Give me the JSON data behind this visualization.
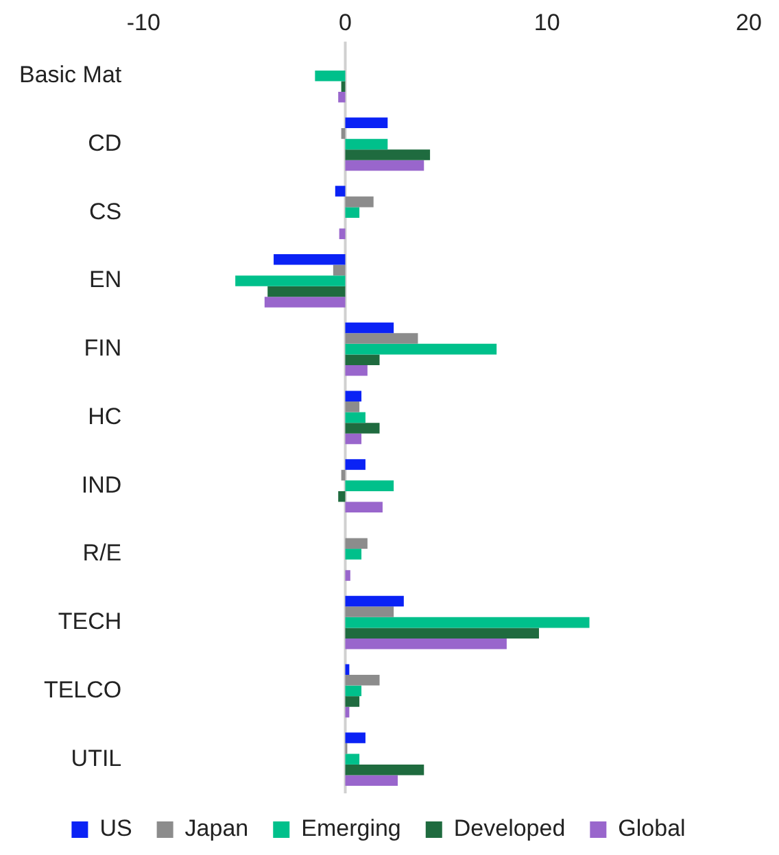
{
  "chart_data": {
    "type": "bar",
    "orientation": "horizontal",
    "categories": [
      "Basic Mat",
      "CD",
      "CS",
      "EN",
      "FIN",
      "HC",
      "IND",
      "R/E",
      "TECH",
      "TELCO",
      "UTIL"
    ],
    "series": [
      {
        "name": "US",
        "color": "#0a22f5",
        "values": [
          0,
          2.1,
          -0.5,
          -3.55,
          2.4,
          0.8,
          1.0,
          0,
          2.9,
          0.2,
          1.0
        ]
      },
      {
        "name": "Japan",
        "color": "#8c8c8c",
        "values": [
          0,
          -0.2,
          1.4,
          -0.6,
          3.6,
          0.7,
          -0.2,
          1.1,
          2.4,
          1.7,
          0.1
        ]
      },
      {
        "name": "Emerging",
        "color": "#00c08b",
        "values": [
          -1.5,
          2.1,
          0.7,
          -5.45,
          7.5,
          1.0,
          2.4,
          0.8,
          12.1,
          0.8,
          0.7
        ]
      },
      {
        "name": "Developed",
        "color": "#1f6b3f",
        "values": [
          -0.2,
          4.2,
          0,
          -3.85,
          1.7,
          1.7,
          -0.35,
          0,
          9.6,
          0.7,
          3.9
        ]
      },
      {
        "name": "Global",
        "color": "#9966cc",
        "values": [
          -0.35,
          3.9,
          -0.3,
          -4.0,
          1.1,
          0.8,
          1.85,
          0.25,
          8.0,
          0.2,
          2.6
        ]
      }
    ],
    "xlim": [
      -10,
      20
    ],
    "xticks": [
      -10,
      0,
      10,
      20
    ],
    "grid": false,
    "legend": "bottom",
    "ref_lines": [
      {
        "axis": "x",
        "value": 0,
        "color": "#d0d0d0"
      }
    ]
  }
}
